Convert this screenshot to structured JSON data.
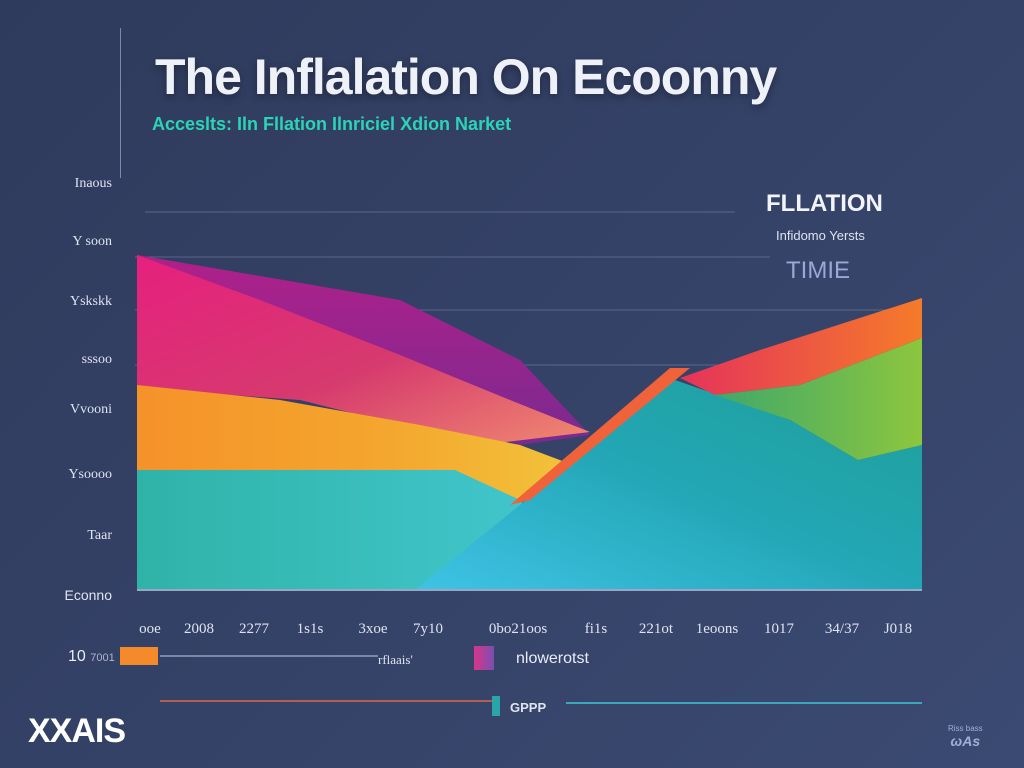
{
  "title": "The Inflalation On Ecoonny",
  "subtitle": "Acceslts: Iln Fllation Ilnriciel Xdion Narket",
  "y_ticks": [
    "Inaous",
    "Y soon",
    "Yskskk",
    "sssoo",
    "Vvooni",
    "Ysoooo",
    "Taar",
    "Econno"
  ],
  "x_ticks": [
    "ooe",
    "2008",
    "2277",
    "1s1s",
    "3xoe",
    "7y10",
    "0bo21oos",
    "fi1s",
    "221ot",
    "1eoons",
    "1017",
    "34/37",
    "J018"
  ],
  "legend": {
    "title": "FLLATION",
    "subtitle": "Infidomo Yersts",
    "time": "TIMIE"
  },
  "bottom": {
    "value": "10",
    "value_unit": "7001",
    "label_a": "rflaais'",
    "label_b": "nlowerotst",
    "gpp": "GPPP",
    "xaxis": "XXAIS"
  },
  "logo": {
    "line1": "Riss bass",
    "line2": "ωAs"
  },
  "colors": {
    "background": "#344166",
    "magenta": "#e0287a",
    "orange": "#f59a2a",
    "teal": "#35c2b8",
    "cyan": "#29b6d6",
    "green": "#6ec048",
    "red_orange": "#f05a3a",
    "subtitle": "#2bd3b7"
  },
  "chart_data": {
    "type": "area",
    "title": "The Inflalation On Ecoonny",
    "subtitle": "Acceslts: Iln Fllation Ilnriciel Xdion Narket",
    "xlabel": "XXAIS",
    "ylabel": "",
    "y_tick_labels": [
      "Inaous",
      "Y soon",
      "Yskskk",
      "sssoo",
      "Vvooni",
      "Ysoooo",
      "Taar",
      "Econno"
    ],
    "x_tick_labels": [
      "ooe",
      "2008",
      "2277",
      "1s1s",
      "3xoe",
      "7y10",
      "0bo21oos",
      "fi1s",
      "221ot",
      "1eoons",
      "1017",
      "34/37",
      "J018"
    ],
    "ylim": [
      0,
      7
    ],
    "grid": true,
    "legend_position": "top-right",
    "series": [
      {
        "color": "#e0287a",
        "points": [
          [
            0,
            5.8
          ],
          [
            0.25,
            4.9
          ],
          [
            0.55,
            3.3
          ],
          [
            0.72,
            2.6
          ]
        ]
      },
      {
        "color": "#f59a2a",
        "points": [
          [
            0,
            3.5
          ],
          [
            0.3,
            3.3
          ],
          [
            0.55,
            2.6
          ],
          [
            0.7,
            1.6
          ]
        ]
      },
      {
        "color": "#35c2b8",
        "points": [
          [
            0,
            2.2
          ],
          [
            0.5,
            2.1
          ],
          [
            0.7,
            1.5
          ],
          [
            0.84,
            0.8
          ],
          [
            0.94,
            0
          ]
        ]
      },
      {
        "color": "#29b6d6",
        "points": [
          [
            1.4,
            0
          ],
          [
            1.95,
            1.6
          ],
          [
            2.2,
            3.6
          ],
          [
            2.6,
            3.0
          ],
          [
            3.0,
            2.6
          ]
        ]
      },
      {
        "color": "#f05a3a",
        "points": [
          [
            2.25,
            3.8
          ],
          [
            2.7,
            4.6
          ],
          [
            3.0,
            5.3
          ]
        ]
      },
      {
        "color": "#6ec048",
        "points": [
          [
            2.4,
            3.5
          ],
          [
            2.8,
            2.2
          ],
          [
            3.0,
            2.6
          ]
        ]
      }
    ]
  }
}
